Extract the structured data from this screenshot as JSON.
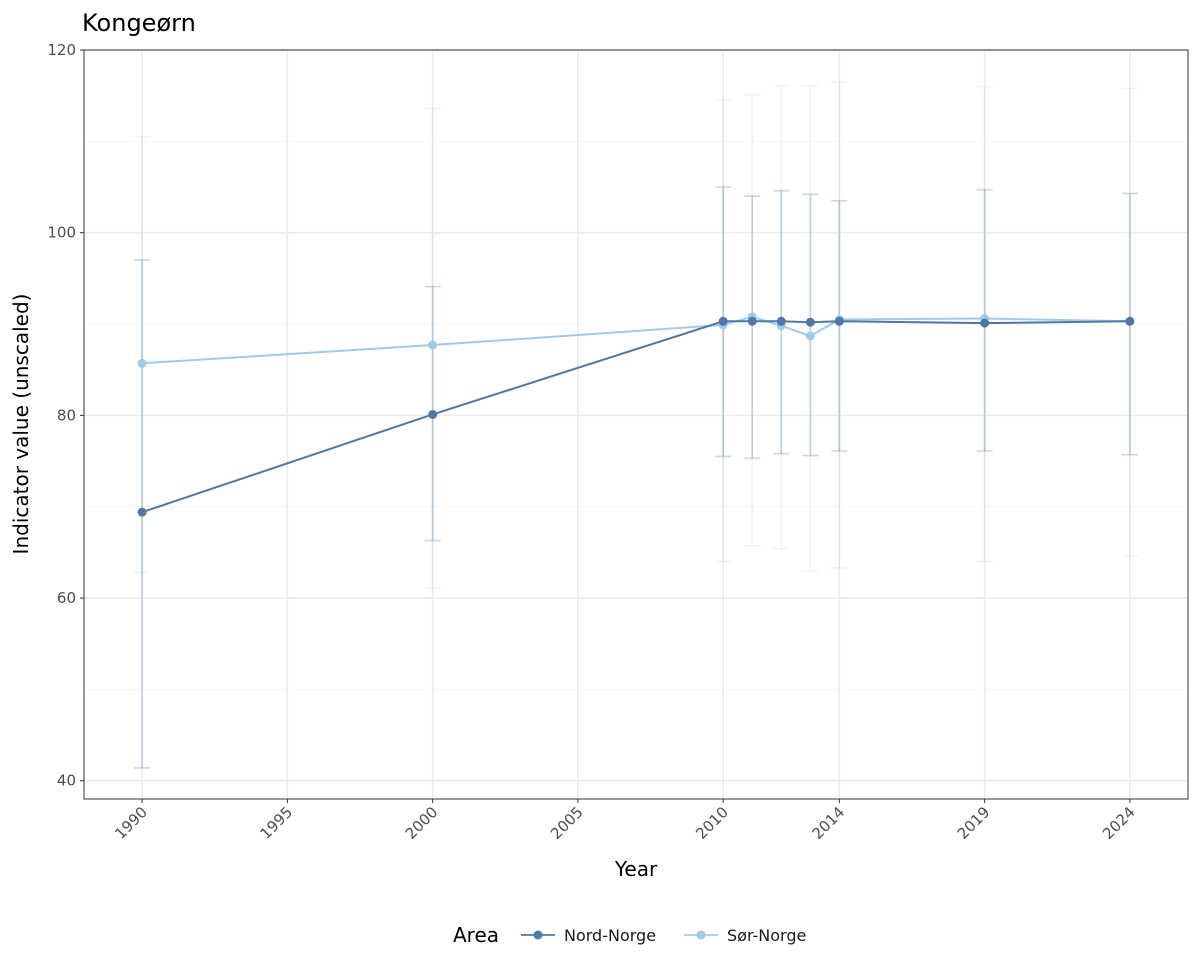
{
  "chart_data": {
    "type": "line",
    "title": "Kongeørn",
    "xlabel": "Year",
    "ylabel": "Indicator value (unscaled)",
    "x_ticks": [
      1990,
      1995,
      2000,
      2005,
      2010,
      2014,
      2019,
      2024
    ],
    "y_ticks": [
      40,
      60,
      80,
      100,
      120
    ],
    "xlim": [
      1988,
      2026
    ],
    "ylim": [
      38,
      120
    ],
    "grid": true,
    "legend": {
      "title": "Area",
      "position": "bottom"
    },
    "series": [
      {
        "name": "Nord-Norge",
        "color": "#4e79a7",
        "points": [
          {
            "x": 1990,
            "y": 69.4,
            "lower": 41.4,
            "upper": 97.0
          },
          {
            "x": 2000,
            "y": 80.1,
            "lower": 66.3,
            "upper": 94.1
          },
          {
            "x": 2010,
            "y": 90.3,
            "lower": 75.5,
            "upper": 105.0
          },
          {
            "x": 2011,
            "y": 90.3,
            "lower": 75.3,
            "upper": 104.0
          },
          {
            "x": 2012,
            "y": 90.3,
            "lower": 75.8,
            "upper": 104.6
          },
          {
            "x": 2013,
            "y": 90.2,
            "lower": 75.6,
            "upper": 104.2
          },
          {
            "x": 2014,
            "y": 90.3,
            "lower": 76.1,
            "upper": 103.5
          },
          {
            "x": 2019,
            "y": 90.1,
            "lower": 76.1,
            "upper": 104.7
          },
          {
            "x": 2024,
            "y": 90.3,
            "lower": 75.7,
            "upper": 104.3
          }
        ]
      },
      {
        "name": "Sør-Norge",
        "color": "#a0cbe8",
        "points": [
          {
            "x": 1990,
            "y": 85.7,
            "lower": 62.8,
            "upper": 110.5
          },
          {
            "x": 2000,
            "y": 87.7,
            "lower": 61.1,
            "upper": 113.6
          },
          {
            "x": 2010,
            "y": 89.9,
            "lower": 64.0,
            "upper": 114.5
          },
          {
            "x": 2011,
            "y": 90.8,
            "lower": 65.7,
            "upper": 115.1
          },
          {
            "x": 2012,
            "y": 89.8,
            "lower": 65.4,
            "upper": 116.1
          },
          {
            "x": 2013,
            "y": 88.7,
            "lower": 63.0,
            "upper": 116.1
          },
          {
            "x": 2014,
            "y": 90.5,
            "lower": 63.3,
            "upper": 116.5
          },
          {
            "x": 2019,
            "y": 90.6,
            "lower": 64.0,
            "upper": 116.0
          },
          {
            "x": 2024,
            "y": 90.3,
            "lower": 64.6,
            "upper": 115.8
          }
        ]
      }
    ]
  }
}
